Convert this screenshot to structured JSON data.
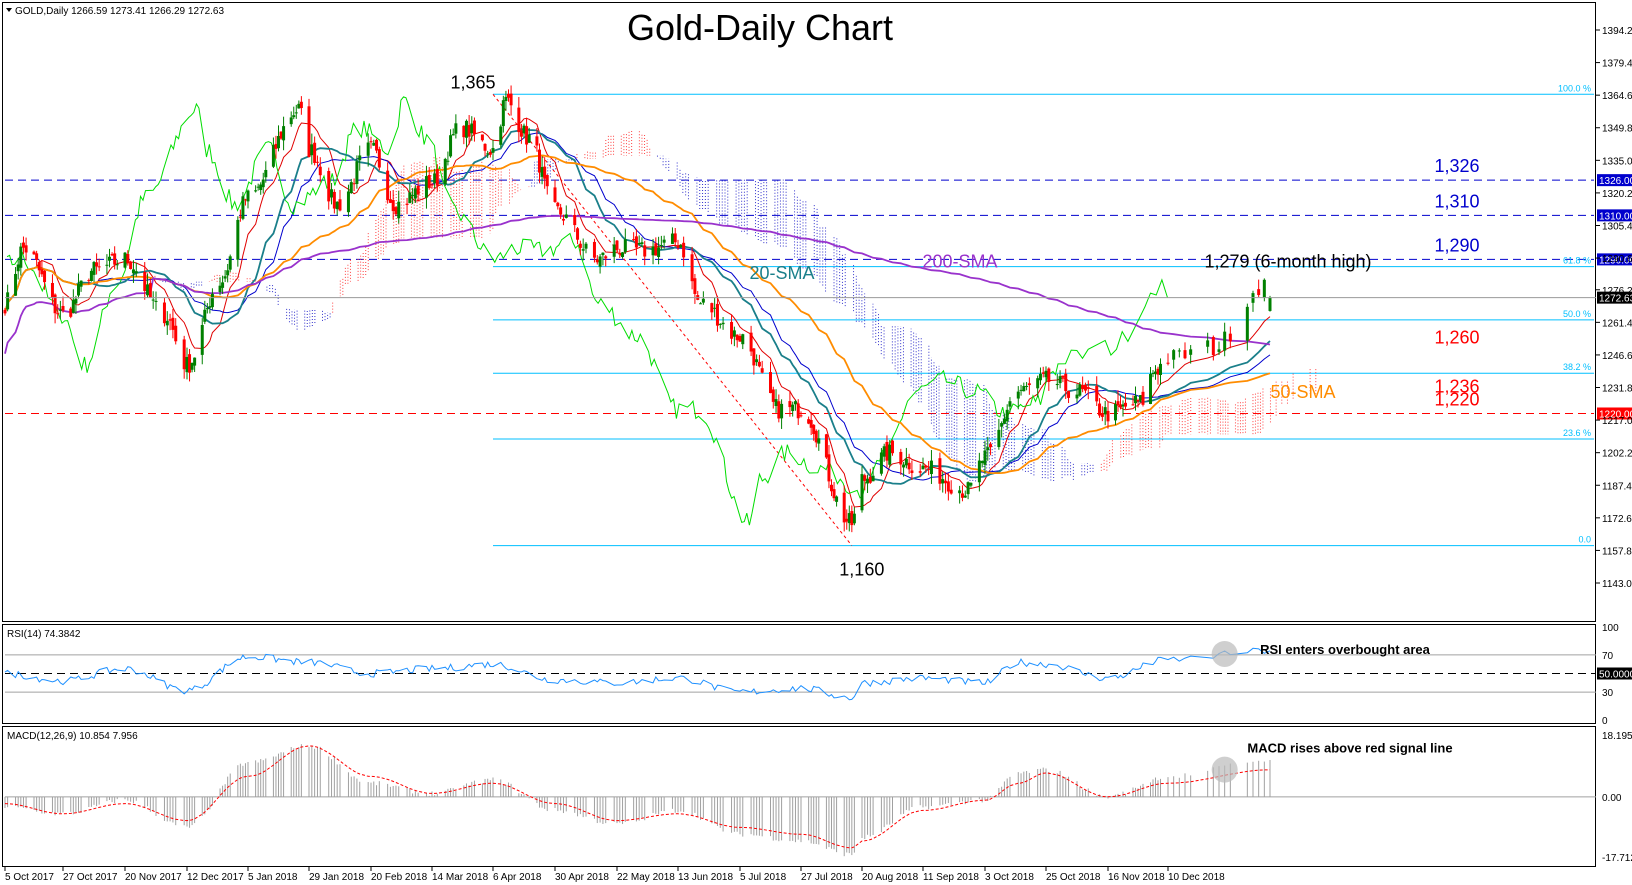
{
  "window": {
    "symbol_info": "GOLD,Daily  1266.59 1273.41 1266.29 1272.63",
    "title": "Gold-Daily Chart"
  },
  "colors": {
    "bull_candle": "#008000",
    "bear_candle": "#ff0000",
    "sma20": "#1a7f8a",
    "sma50": "#ff8c00",
    "sma200": "#9932cc",
    "kijun": "#0000cd",
    "tenkan": "#e00000",
    "chikou": "#00dd00",
    "fib": "#00bfff",
    "blue_level": "#0000cd",
    "red_level": "#ff0000",
    "rsi": "#1e90ff",
    "macd_signal": "#ff0000"
  },
  "chart_data": [
    {
      "type": "candlestick",
      "title": "Gold-Daily Chart",
      "x_ticks": [
        "5 Oct 2017",
        "27 Oct 2017",
        "20 Nov 2017",
        "12 Dec 2017",
        "5 Jan 2018",
        "29 Jan 2018",
        "20 Feb 2018",
        "14 Mar 2018",
        "6 Apr 2018",
        "30 Apr 2018",
        "22 May 2018",
        "13 Jun 2018",
        "5 Jul 2018",
        "27 Jul 2018",
        "20 Aug 2018",
        "11 Sep 2018",
        "3 Oct 2018",
        "25 Oct 2018",
        "16 Nov 2018",
        "10 Dec 2018"
      ],
      "y_ticks": [
        "1394.20",
        "1379.40",
        "1364.60",
        "1349.80",
        "1335.00",
        "1320.20",
        "1305.40",
        "1290.60",
        "1276.20",
        "1261.40",
        "1246.60",
        "1231.80",
        "1217.00",
        "1202.20",
        "1187.40",
        "1172.60",
        "1157.80",
        "1143.00"
      ],
      "ylim": [
        1136,
        1400
      ],
      "price_key_points": [
        {
          "date": "5 Oct 2017",
          "close": 1270
        },
        {
          "date": "12 Oct 2017",
          "close": 1295
        },
        {
          "date": "27 Oct 2017",
          "close": 1265
        },
        {
          "date": "8 Nov 2017",
          "close": 1285
        },
        {
          "date": "20 Nov 2017",
          "close": 1290
        },
        {
          "date": "4 Dec 2017",
          "close": 1265
        },
        {
          "date": "12 Dec 2017",
          "close": 1242
        },
        {
          "date": "25 Dec 2017",
          "close": 1280
        },
        {
          "date": "5 Jan 2018",
          "close": 1318
        },
        {
          "date": "25 Jan 2018",
          "close": 1358
        },
        {
          "date": "29 Jan 2018",
          "close": 1340
        },
        {
          "date": "8 Feb 2018",
          "close": 1315
        },
        {
          "date": "20 Feb 2018",
          "close": 1340
        },
        {
          "date": "1 Mar 2018",
          "close": 1315
        },
        {
          "date": "14 Mar 2018",
          "close": 1325
        },
        {
          "date": "25 Mar 2018",
          "close": 1350
        },
        {
          "date": "6 Apr 2018",
          "close": 1340
        },
        {
          "date": "11 Apr 2018",
          "close": 1362
        },
        {
          "date": "20 Apr 2018",
          "close": 1345
        },
        {
          "date": "30 Apr 2018",
          "close": 1312
        },
        {
          "date": "15 May 2018",
          "close": 1290
        },
        {
          "date": "22 May 2018",
          "close": 1295
        },
        {
          "date": "1 Jun 2018",
          "close": 1294
        },
        {
          "date": "13 Jun 2018",
          "close": 1298
        },
        {
          "date": "21 Jun 2018",
          "close": 1270
        },
        {
          "date": "5 Jul 2018",
          "close": 1255
        },
        {
          "date": "19 Jul 2018",
          "close": 1222
        },
        {
          "date": "27 Jul 2018",
          "close": 1222
        },
        {
          "date": "16 Aug 2018",
          "close": 1170
        },
        {
          "date": "20 Aug 2018",
          "close": 1190
        },
        {
          "date": "30 Aug 2018",
          "close": 1202
        },
        {
          "date": "11 Sep 2018",
          "close": 1195
        },
        {
          "date": "27 Sep 2018",
          "close": 1185
        },
        {
          "date": "3 Oct 2018",
          "close": 1200
        },
        {
          "date": "15 Oct 2018",
          "close": 1230
        },
        {
          "date": "25 Oct 2018",
          "close": 1235
        },
        {
          "date": "5 Nov 2018",
          "close": 1230
        },
        {
          "date": "16 Nov 2018",
          "close": 1220
        },
        {
          "date": "29 Nov 2018",
          "close": 1225
        },
        {
          "date": "5 Dec 2018",
          "close": 1240
        },
        {
          "date": "10 Dec 2018",
          "close": 1245
        },
        {
          "date": "18 Dec 2018",
          "close": 1250
        },
        {
          "date": "27 Dec 2018",
          "close": 1279
        },
        {
          "date": "28 Dec 2018",
          "close": 1272.63
        }
      ],
      "horizontal_levels": [
        {
          "value": 1326,
          "axis_label": "1326.00",
          "note": "1,326",
          "color": "blue",
          "style": "dashed"
        },
        {
          "value": 1310,
          "axis_label": "1310.00",
          "note": "1,310",
          "color": "blue",
          "style": "dashed"
        },
        {
          "value": 1290,
          "axis_label": "1290.00",
          "note": "1,290",
          "color": "blue",
          "style": "dashed"
        },
        {
          "value": 1220,
          "axis_label": "1220.00",
          "note": "1,220",
          "color": "red",
          "style": "dashed"
        }
      ],
      "fibonacci": {
        "high": 1365,
        "low": 1160,
        "levels": [
          {
            "label": "100.0 %",
            "value": 1365
          },
          {
            "label": "61.8 %",
            "value": 1286.7
          },
          {
            "label": "50.0 %",
            "value": 1262.5
          },
          {
            "label": "38.2 %",
            "value": 1238.3
          },
          {
            "label": "23.6 %",
            "value": 1208.4
          },
          {
            "label": "0.0",
            "value": 1160
          }
        ]
      },
      "current_price_label": "1272.63",
      "annotations": [
        {
          "text": "1,365",
          "date": "6 Apr 2018",
          "value": 1365
        },
        {
          "text": "1,160",
          "date": "16 Aug 2018",
          "value": 1160
        },
        {
          "text": "1,279 (6-month high)",
          "date": "27 Dec 2018",
          "value": 1279
        },
        {
          "text": "1,260",
          "value": 1260,
          "color": "red"
        },
        {
          "text": "1,236",
          "value": 1236,
          "color": "red"
        },
        {
          "text": "200-SMA",
          "color": "purple"
        },
        {
          "text": "20-SMA",
          "color": "teal"
        },
        {
          "text": "50-SMA",
          "color": "orange"
        }
      ],
      "indicators": [
        "20-SMA",
        "50-SMA",
        "200-SMA",
        "Ichimoku Cloud"
      ],
      "grid": false
    },
    {
      "type": "line",
      "title": "RSI(14) 74.3842",
      "y_ticks": [
        "100",
        "70",
        "50.0000",
        "30",
        "0"
      ],
      "ylim": [
        0,
        100
      ],
      "levels": [
        70,
        50,
        30
      ],
      "current_value": 74.3842,
      "key_points": [
        {
          "date": "5 Oct 2017",
          "value": 50
        },
        {
          "date": "27 Oct 2017",
          "value": 42
        },
        {
          "date": "20 Nov 2017",
          "value": 55
        },
        {
          "date": "12 Dec 2017",
          "value": 32
        },
        {
          "date": "5 Jan 2018",
          "value": 68
        },
        {
          "date": "29 Jan 2018",
          "value": 62
        },
        {
          "date": "20 Feb 2018",
          "value": 50
        },
        {
          "date": "14 Mar 2018",
          "value": 55
        },
        {
          "date": "6 Apr 2018",
          "value": 60
        },
        {
          "date": "30 Apr 2018",
          "value": 43
        },
        {
          "date": "22 May 2018",
          "value": 40
        },
        {
          "date": "13 Jun 2018",
          "value": 45
        },
        {
          "date": "5 Jul 2018",
          "value": 30
        },
        {
          "date": "27 Jul 2018",
          "value": 34
        },
        {
          "date": "16 Aug 2018",
          "value": 24
        },
        {
          "date": "20 Aug 2018",
          "value": 40
        },
        {
          "date": "11 Sep 2018",
          "value": 45
        },
        {
          "date": "3 Oct 2018",
          "value": 40
        },
        {
          "date": "15 Oct 2018",
          "value": 62
        },
        {
          "date": "25 Oct 2018",
          "value": 60
        },
        {
          "date": "16 Nov 2018",
          "value": 45
        },
        {
          "date": "10 Dec 2018",
          "value": 65
        },
        {
          "date": "28 Dec 2018",
          "value": 74.38
        }
      ],
      "annotation": "RSI enters overbought area"
    },
    {
      "type": "bar",
      "title": "MACD(12,26,9) 10.854 7.956",
      "y_ticks": [
        "18.1952",
        "0.00",
        "-17.7128"
      ],
      "ylim": [
        -19.5,
        19.5
      ],
      "macd_current": 10.854,
      "signal_current": 7.956,
      "key_points": [
        {
          "date": "5 Oct 2017",
          "macd": -3,
          "signal": -2
        },
        {
          "date": "27 Oct 2017",
          "macd": -5,
          "signal": -5
        },
        {
          "date": "20 Nov 2017",
          "macd": -1,
          "signal": -2
        },
        {
          "date": "12 Dec 2017",
          "macd": -9,
          "signal": -7
        },
        {
          "date": "5 Jan 2018",
          "macd": 10,
          "signal": 6
        },
        {
          "date": "29 Jan 2018",
          "macd": 15,
          "signal": 15
        },
        {
          "date": "20 Feb 2018",
          "macd": 4,
          "signal": 6
        },
        {
          "date": "14 Mar 2018",
          "macd": 1,
          "signal": 1
        },
        {
          "date": "6 Apr 2018",
          "macd": 5,
          "signal": 4
        },
        {
          "date": "30 Apr 2018",
          "macd": -4,
          "signal": -2
        },
        {
          "date": "22 May 2018",
          "macd": -8,
          "signal": -7
        },
        {
          "date": "13 Jun 2018",
          "macd": -4,
          "signal": -5
        },
        {
          "date": "5 Jul 2018",
          "macd": -11,
          "signal": -9
        },
        {
          "date": "27 Jul 2018",
          "macd": -13,
          "signal": -11
        },
        {
          "date": "16 Aug 2018",
          "macd": -17,
          "signal": -15
        },
        {
          "date": "20 Aug 2018",
          "macd": -12,
          "signal": -13
        },
        {
          "date": "11 Sep 2018",
          "macd": -3,
          "signal": -4
        },
        {
          "date": "3 Oct 2018",
          "macd": -1,
          "signal": -1
        },
        {
          "date": "15 Oct 2018",
          "macd": 7,
          "signal": 4
        },
        {
          "date": "25 Oct 2018",
          "macd": 8,
          "signal": 7
        },
        {
          "date": "16 Nov 2018",
          "macd": 0,
          "signal": 0
        },
        {
          "date": "10 Dec 2018",
          "macd": 6,
          "signal": 4
        },
        {
          "date": "28 Dec 2018",
          "macd": 10.854,
          "signal": 7.956
        }
      ],
      "annotation": "MACD rises above red signal line"
    }
  ]
}
